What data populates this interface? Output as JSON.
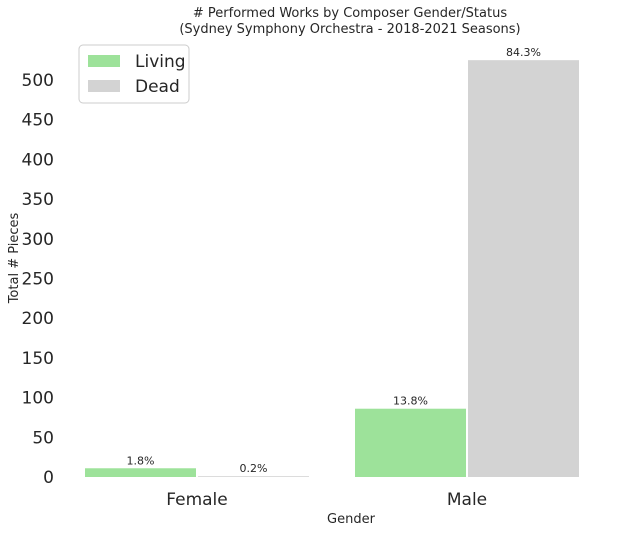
{
  "chart_data": {
    "type": "bar",
    "title": "# Performed Works by Composer Gender/Status",
    "subtitle": "(Sydney Symphony Orchestra - 2018-2021 Seasons)",
    "xlabel": "Gender",
    "ylabel": "Total # Pieces",
    "categories": [
      "Female",
      "Male"
    ],
    "ylim": [
      0,
      525
    ],
    "yticks": [
      0,
      50,
      100,
      150,
      200,
      250,
      300,
      350,
      400,
      450,
      500
    ],
    "grid": false,
    "legend_position": "top-left",
    "series": [
      {
        "name": "Living",
        "color": "#9de29a",
        "values": [
          11,
          86
        ],
        "labels": [
          "1.8%",
          "13.8%"
        ]
      },
      {
        "name": "Dead",
        "color": "#d3d3d3",
        "values": [
          1,
          525
        ],
        "labels": [
          "0.2%",
          "84.3%"
        ]
      }
    ]
  }
}
